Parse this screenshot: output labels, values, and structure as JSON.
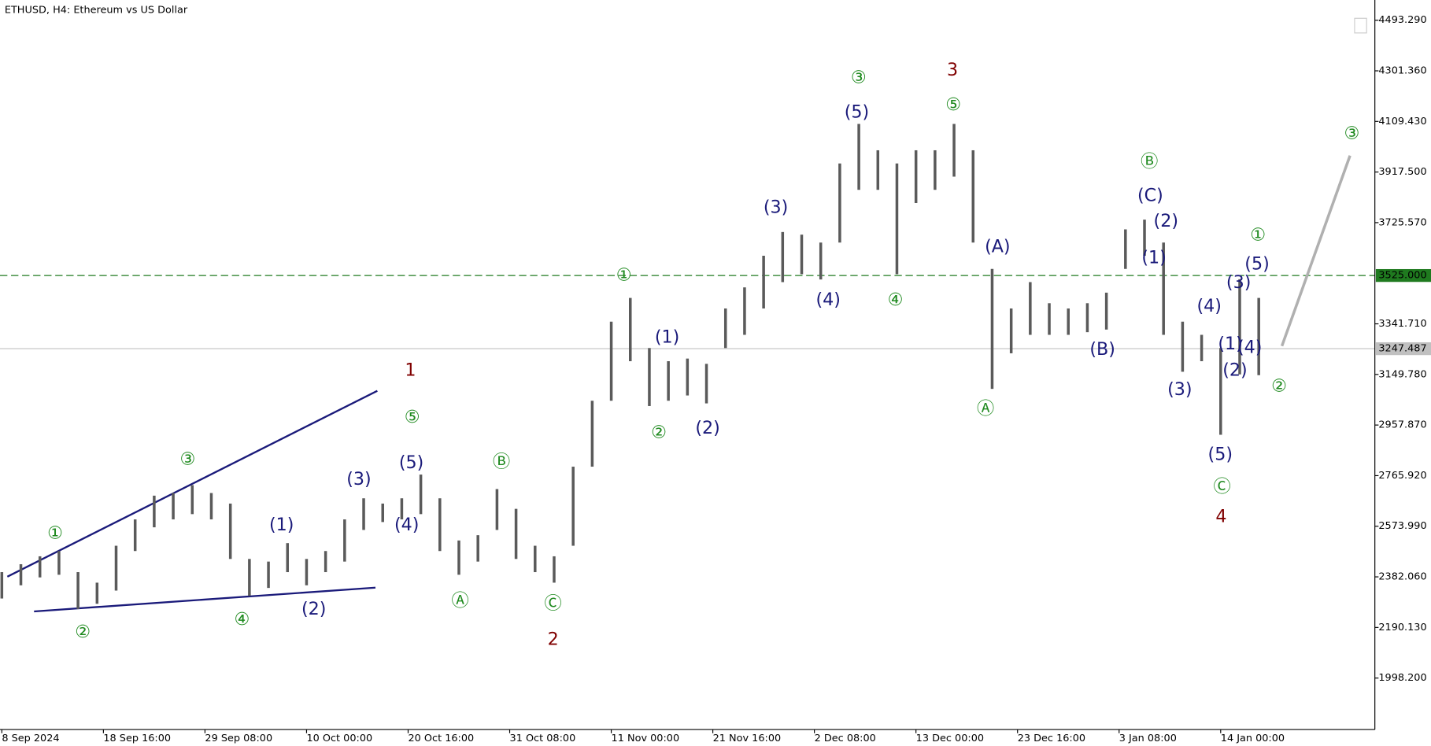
{
  "chart_data": {
    "type": "ohlc",
    "title": "ETHUSD, H4:  Ethereum vs US Dollar",
    "color": "#5a5a5a",
    "xlim": [
      0,
      144
    ],
    "ylim": [
      1803,
      4570
    ],
    "xticks": [
      {
        "value": 0,
        "label": "8 Sep 2024"
      },
      {
        "value": 10.667,
        "label": "18 Sep 16:00"
      },
      {
        "value": 21.333,
        "label": "29 Sep 08:00"
      },
      {
        "value": 32,
        "label": "10 Oct 00:00"
      },
      {
        "value": 42.667,
        "label": "20 Oct 16:00"
      },
      {
        "value": 53.333,
        "label": "31 Oct 08:00"
      },
      {
        "value": 64,
        "label": "11 Nov 00:00"
      },
      {
        "value": 74.667,
        "label": "21 Nov 16:00"
      },
      {
        "value": 85.333,
        "label": "2 Dec 08:00"
      },
      {
        "value": 96,
        "label": "13 Dec 00:00"
      },
      {
        "value": 106.667,
        "label": "23 Dec 16:00"
      },
      {
        "value": 117.333,
        "label": "3 Jan 08:00"
      },
      {
        "value": 128,
        "label": "14 Jan 00:00"
      }
    ],
    "yticks": [
      {
        "value": 4493.29,
        "label": "4493.290"
      },
      {
        "value": 4301.36,
        "label": "4301.360"
      },
      {
        "value": 4109.43,
        "label": "4109.430"
      },
      {
        "value": 3917.5,
        "label": "3917.500"
      },
      {
        "value": 3725.57,
        "label": "3725.570"
      },
      {
        "value": 3341.71,
        "label": "3341.710"
      },
      {
        "value": 3149.78,
        "label": "3149.780"
      },
      {
        "value": 2957.87,
        "label": "2957.870"
      },
      {
        "value": 2765.92,
        "label": "2765.920"
      },
      {
        "value": 2573.99,
        "label": "2573.990"
      },
      {
        "value": 2382.06,
        "label": "2382.060"
      },
      {
        "value": 2190.13,
        "label": "2190.130"
      },
      {
        "value": 1998.2,
        "label": "1998.200"
      }
    ],
    "levels": [
      {
        "value": 3525,
        "label": "3525.000",
        "color": "#1f7a1f",
        "style": "dashed"
      },
      {
        "value": 3247.487,
        "color": "#c0c0c0",
        "style": "solid"
      }
    ],
    "x": [
      0,
      2,
      4,
      6,
      8,
      10,
      12,
      14,
      16,
      18,
      20,
      22,
      24,
      26,
      28,
      30,
      32,
      34,
      36,
      38,
      40,
      42,
      44,
      46,
      48,
      50,
      52,
      54,
      56,
      58,
      60,
      62,
      64,
      66,
      68,
      70,
      72,
      74,
      76,
      78,
      80,
      82,
      84,
      86,
      88,
      90,
      92,
      94,
      96,
      98,
      100,
      102,
      104,
      106,
      108,
      110,
      112,
      114,
      116,
      118,
      120,
      122,
      124,
      126,
      128,
      130,
      132
    ],
    "low": [
      2300,
      2350,
      2380,
      2390,
      2260,
      2280,
      2330,
      2480,
      2570,
      2600,
      2620,
      2600,
      2450,
      2310,
      2340,
      2400,
      2350,
      2400,
      2440,
      2560,
      2590,
      2600,
      2620,
      2480,
      2390,
      2440,
      2560,
      2450,
      2400,
      2360,
      2500,
      2800,
      3050,
      3200,
      3030,
      3050,
      3070,
      3040,
      3250,
      3300,
      3400,
      3500,
      3530,
      3510,
      3650,
      3850,
      3850,
      3530,
      3800,
      3850,
      3900,
      3650,
      3095,
      3230,
      3300,
      3300,
      3300,
      3310,
      3320,
      3550,
      3600,
      3300,
      3160,
      3200,
      2921,
      3150,
      3147
    ],
    "high": [
      2400,
      2430,
      2460,
      2480,
      2400,
      2360,
      2500,
      2600,
      2690,
      2700,
      2730,
      2700,
      2660,
      2450,
      2440,
      2510,
      2450,
      2480,
      2600,
      2680,
      2660,
      2680,
      2770,
      2680,
      2520,
      2540,
      2715,
      2640,
      2500,
      2460,
      2800,
      3050,
      3350,
      3440,
      3250,
      3200,
      3210,
      3190,
      3400,
      3480,
      3600,
      3690,
      3680,
      3650,
      3950,
      4100,
      4000,
      3950,
      4000,
      4000,
      4100,
      4000,
      3550,
      3400,
      3500,
      3420,
      3400,
      3420,
      3460,
      3700,
      3737,
      3650,
      3350,
      3300,
      3250,
      3511,
      3440
    ],
    "annotations": [
      {
        "text": "1",
        "color": "#800000"
      },
      {
        "text": "⑤",
        "color": "#1f8a1f"
      },
      {
        "text": "③",
        "color": "#1f8a1f"
      },
      {
        "text": "①",
        "color": "#1f8a1f"
      },
      {
        "text": "②",
        "color": "#1f8a1f"
      },
      {
        "text": "④",
        "color": "#1f8a1f"
      },
      {
        "text": "(1)",
        "color": "#1a1a7a"
      },
      {
        "text": "(2)",
        "color": "#1a1a7a"
      },
      {
        "text": "(3)",
        "color": "#1a1a7a"
      },
      {
        "text": "(5)",
        "color": "#1a1a7a"
      },
      {
        "text": "(4)",
        "color": "#1a1a7a"
      },
      {
        "text": "Ⓐ",
        "color": "#1f8a1f"
      },
      {
        "text": "Ⓑ",
        "color": "#1f8a1f"
      },
      {
        "text": "Ⓒ",
        "color": "#1f8a1f"
      },
      {
        "text": "2",
        "color": "#800000"
      },
      {
        "text": "①",
        "color": "#1f8a1f"
      },
      {
        "text": "(1)",
        "color": "#1a1a7a"
      },
      {
        "text": "②",
        "color": "#1f8a1f"
      },
      {
        "text": "(2)",
        "color": "#1a1a7a"
      },
      {
        "text": "(3)",
        "color": "#1a1a7a"
      },
      {
        "text": "(4)",
        "color": "#1a1a7a"
      },
      {
        "text": "③",
        "color": "#1f8a1f"
      },
      {
        "text": "(5)",
        "color": "#1a1a7a"
      },
      {
        "text": "④",
        "color": "#1f8a1f"
      },
      {
        "text": "3",
        "color": "#800000"
      },
      {
        "text": "⑤",
        "color": "#1f8a1f"
      },
      {
        "text": "(A)",
        "color": "#1a1a7a"
      },
      {
        "text": "Ⓐ",
        "color": "#1f8a1f"
      },
      {
        "text": "(B)",
        "color": "#1a1a7a"
      },
      {
        "text": "Ⓑ",
        "color": "#1f8a1f"
      },
      {
        "text": "(C)",
        "color": "#1a1a7a"
      },
      {
        "text": "(2)",
        "color": "#1a1a7a"
      },
      {
        "text": "(1)",
        "color": "#1a1a7a"
      },
      {
        "text": "(3)",
        "color": "#1a1a7a"
      },
      {
        "text": "(4)",
        "color": "#1a1a7a"
      },
      {
        "text": "(5)",
        "color": "#1a1a7a"
      },
      {
        "text": "Ⓒ",
        "color": "#1f8a1f"
      },
      {
        "text": "4",
        "color": "#800000"
      },
      {
        "text": "①",
        "color": "#1f8a1f"
      },
      {
        "text": "(5)",
        "color": "#1a1a7a"
      },
      {
        "text": "(3)",
        "color": "#1a1a7a"
      },
      {
        "text": "(1)",
        "color": "#1a1a7a"
      },
      {
        "text": "(4)",
        "color": "#1a1a7a"
      },
      {
        "text": "(2)",
        "color": "#1a1a7a"
      },
      {
        "text": "②",
        "color": "#1f8a1f"
      },
      {
        "text": "③",
        "color": "#1f8a1f"
      }
    ]
  }
}
